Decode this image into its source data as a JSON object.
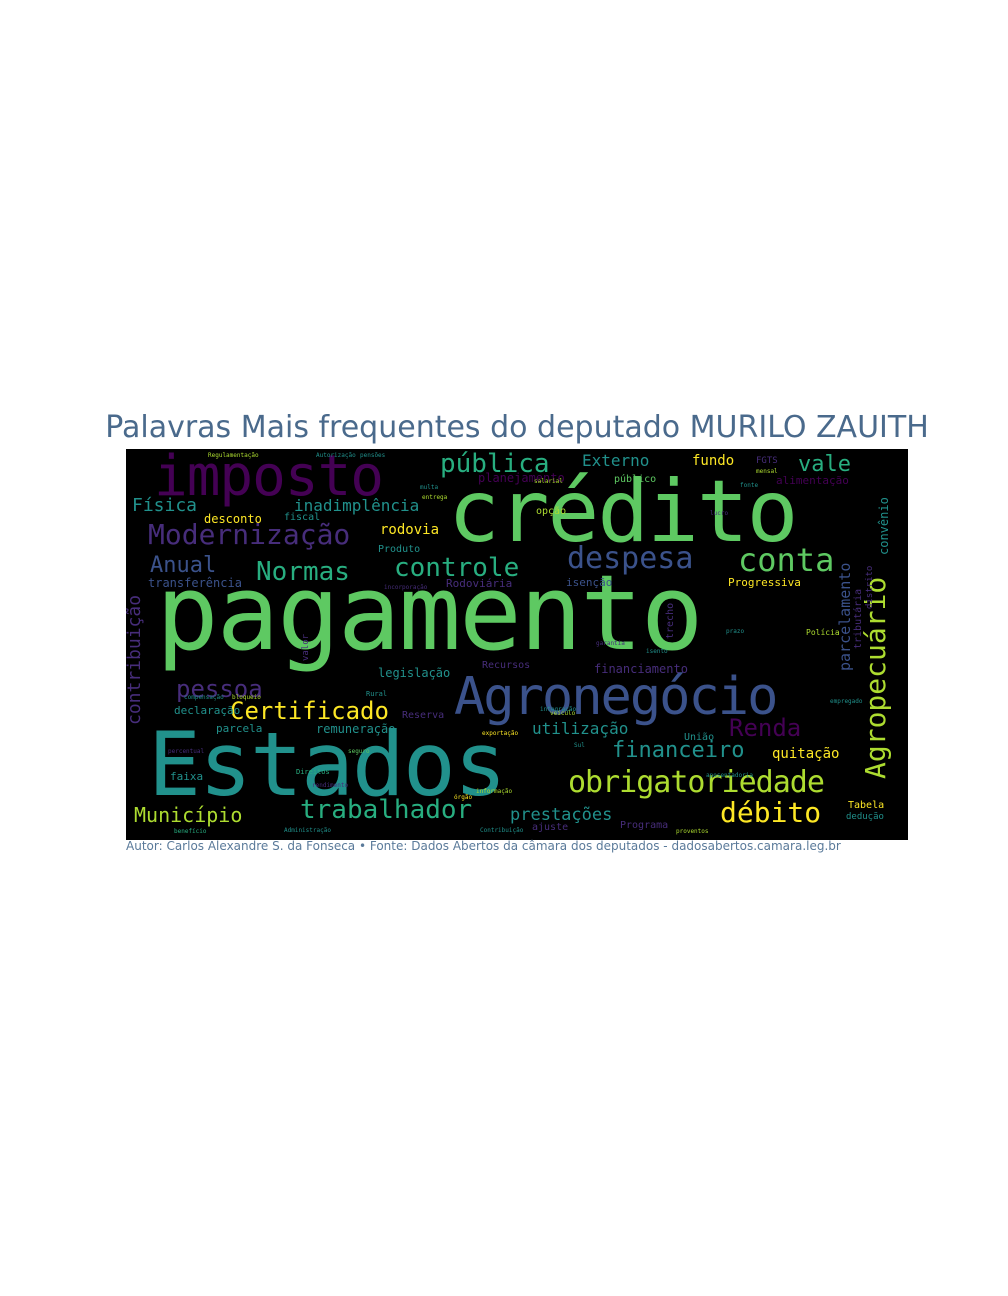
{
  "title": "Palavras Mais frequentes do deputado MURILO ZAUITH",
  "footer": "Autor: Carlos Alexandre S. da Fonseca • Fonte: Dados Abertos da câmara dos deputados - dadosabertos.camara.leg.br",
  "colors": {
    "green": "#5ec962",
    "teal": "#21918c",
    "blue": "#3b528b",
    "purple": "#440154",
    "violet": "#472d7b",
    "yellow": "#fde725",
    "lime": "#addc30",
    "seagreen": "#28ae80",
    "title": "#4a6a8c"
  },
  "words": [
    {
      "text": "pagamento",
      "color": "green",
      "rot": 0
    },
    {
      "text": "crédito",
      "color": "green",
      "rot": 0
    },
    {
      "text": "Estados",
      "color": "teal",
      "rot": 0
    },
    {
      "text": "imposto",
      "color": "purple",
      "rot": 0
    },
    {
      "text": "Agronegócio",
      "color": "blue",
      "rot": 0
    },
    {
      "text": "obrigatoriedade",
      "color": "lime",
      "rot": 0
    },
    {
      "text": "trabalhador",
      "color": "seagreen",
      "rot": 0
    },
    {
      "text": "Agropecuário",
      "color": "lime",
      "rot": -90
    },
    {
      "text": "despesa",
      "color": "blue",
      "rot": 0
    },
    {
      "text": "conta",
      "color": "green",
      "rot": 0
    },
    {
      "text": "controle",
      "color": "seagreen",
      "rot": 0
    },
    {
      "text": "Normas",
      "color": "seagreen",
      "rot": 0
    },
    {
      "text": "Modernização",
      "color": "violet",
      "rot": 0
    },
    {
      "text": "pública",
      "color": "seagreen",
      "rot": 0
    },
    {
      "text": "Certificado",
      "color": "yellow",
      "rot": 0
    },
    {
      "text": "débito",
      "color": "yellow",
      "rot": 0
    },
    {
      "text": "pessoa",
      "color": "violet",
      "rot": 0
    },
    {
      "text": "Renda",
      "color": "purple",
      "rot": 0
    },
    {
      "text": "financeiro",
      "color": "teal",
      "rot": 0
    },
    {
      "text": "Município",
      "color": "lime",
      "rot": 0
    },
    {
      "text": "Anual",
      "color": "blue",
      "rot": 0
    },
    {
      "text": "vale",
      "color": "seagreen",
      "rot": 0
    },
    {
      "text": "prestações",
      "color": "teal",
      "rot": 0
    },
    {
      "text": "Física",
      "color": "teal",
      "rot": 0
    },
    {
      "text": "inadimplência",
      "color": "teal",
      "rot": 0
    },
    {
      "text": "Externo",
      "color": "teal",
      "rot": 0
    },
    {
      "text": "fundo",
      "color": "yellow",
      "rot": 0
    },
    {
      "text": "utilização",
      "color": "teal",
      "rot": 0
    },
    {
      "text": "quitação",
      "color": "yellow",
      "rot": 0
    },
    {
      "text": "contribuição",
      "color": "violet",
      "rot": -90
    },
    {
      "text": "parcelamento",
      "color": "blue",
      "rot": -90
    },
    {
      "text": "rodovia",
      "color": "yellow",
      "rot": 0
    },
    {
      "text": "desconto",
      "color": "yellow",
      "rot": 0
    },
    {
      "text": "planejamento",
      "color": "purple",
      "rot": 0
    },
    {
      "text": "alimentação",
      "color": "purple",
      "rot": 0
    },
    {
      "text": "convênio",
      "color": "teal",
      "rot": -90
    },
    {
      "text": "transferência",
      "color": "blue",
      "rot": 0
    },
    {
      "text": "Progressiva",
      "color": "yellow",
      "rot": 0
    },
    {
      "text": "Rodoviária",
      "color": "violet",
      "rot": 0
    },
    {
      "text": "isenção",
      "color": "blue",
      "rot": 0
    },
    {
      "text": "financiamento",
      "color": "violet",
      "rot": 0
    },
    {
      "text": "legislação",
      "color": "teal",
      "rot": 0
    },
    {
      "text": "remuneração",
      "color": "teal",
      "rot": 0
    },
    {
      "text": "declaração",
      "color": "teal",
      "rot": 0
    },
    {
      "text": "parcela",
      "color": "teal",
      "rot": 0
    },
    {
      "text": "faixa",
      "color": "teal",
      "rot": 0
    },
    {
      "text": "Tabela",
      "color": "yellow",
      "rot": 0
    },
    {
      "text": "Programa",
      "color": "violet",
      "rot": 0
    },
    {
      "text": "ajuste",
      "color": "violet",
      "rot": 0
    },
    {
      "text": "público",
      "color": "green",
      "rot": 0
    },
    {
      "text": "fiscal",
      "color": "teal",
      "rot": 0
    },
    {
      "text": "Produto",
      "color": "teal",
      "rot": 0
    },
    {
      "text": "opção",
      "color": "lime",
      "rot": 0
    },
    {
      "text": "tributária",
      "color": "violet",
      "rot": -90
    },
    {
      "text": "Recursos",
      "color": "violet",
      "rot": 0
    },
    {
      "text": "União",
      "color": "teal",
      "rot": 0
    },
    {
      "text": "Reserva",
      "color": "violet",
      "rot": 0
    },
    {
      "text": "trecho",
      "color": "violet",
      "rot": -90
    },
    {
      "text": "valor",
      "color": "violet",
      "rot": -90
    },
    {
      "text": "FGTS",
      "color": "violet",
      "rot": 0
    },
    {
      "text": "dedução",
      "color": "teal",
      "rot": 0
    },
    {
      "text": "distrito",
      "color": "violet",
      "rot": -90
    },
    {
      "text": "Polícia",
      "color": "lime",
      "rot": 0
    },
    {
      "text": "Rural",
      "color": "teal",
      "rot": 0
    },
    {
      "text": "Direitos",
      "color": "seagreen",
      "rot": 0
    },
    {
      "text": "Regulamentação",
      "color": "lime",
      "rot": 0
    },
    {
      "text": "Autorização",
      "color": "teal",
      "rot": 0
    },
    {
      "text": "percentual",
      "color": "violet",
      "rot": 0
    },
    {
      "text": "aposentadoria",
      "color": "teal",
      "rot": 0
    },
    {
      "text": "Contribuição",
      "color": "teal",
      "rot": 0
    },
    {
      "text": "salarial",
      "color": "lime",
      "rot": 0
    },
    {
      "text": "órgão",
      "color": "yellow",
      "rot": 0
    },
    {
      "text": "veículo",
      "color": "lime",
      "rot": 0
    },
    {
      "text": "garantia",
      "color": "violet",
      "rot": 0
    },
    {
      "text": "isento",
      "color": "teal",
      "rot": 0
    },
    {
      "text": "rendimento",
      "color": "violet",
      "rot": 0
    },
    {
      "text": "seguro",
      "color": "green",
      "rot": 0
    },
    {
      "text": "empregado",
      "color": "teal",
      "rot": 0
    },
    {
      "text": "mensal",
      "color": "lime",
      "rot": 0
    },
    {
      "text": "benefício",
      "color": "seagreen",
      "rot": 0
    },
    {
      "text": "Administração",
      "color": "teal",
      "rot": 0
    },
    {
      "text": "integração",
      "color": "teal",
      "rot": 0
    },
    {
      "text": "proventos",
      "color": "lime",
      "rot": 0
    },
    {
      "text": "informação",
      "color": "lime",
      "rot": 0
    },
    {
      "text": "exportação",
      "color": "yellow",
      "rot": 0
    },
    {
      "text": "multa",
      "color": "teal",
      "rot": 0
    },
    {
      "text": "entrega",
      "color": "lime",
      "rot": 0
    },
    {
      "text": "incorporação",
      "color": "violet",
      "rot": 0
    },
    {
      "text": "compensação",
      "color": "teal",
      "rot": 0
    },
    {
      "text": "bloqueio",
      "color": "lime",
      "rot": 0
    },
    {
      "text": "pensões",
      "color": "teal",
      "rot": 0
    },
    {
      "text": "prazo",
      "color": "teal",
      "rot": 0
    },
    {
      "text": "lucro",
      "color": "violet",
      "rot": 0
    },
    {
      "text": "fonte",
      "color": "teal",
      "rot": 0
    },
    {
      "text": "Sul",
      "color": "teal",
      "rot": 0
    }
  ]
}
